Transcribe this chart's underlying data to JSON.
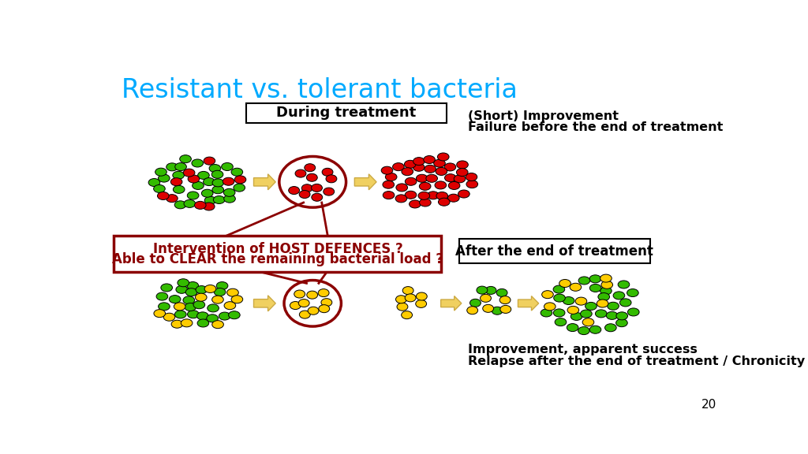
{
  "title": "Resistant vs. tolerant bacteria",
  "title_color": "#00AAFF",
  "title_fontsize": 24,
  "bg_color": "#FFFFFF",
  "during_treatment_label": "During treatment",
  "after_treatment_label": "After the end of treatment",
  "host_defence_line1": "Intervention of HOST DEFENCES ?",
  "host_defence_line2": "Able to CLEAR the remaining bacterial load ?",
  "short_improvement_line1": "(Short) Improvement",
  "short_improvement_line2": "Failure before the end of treatment",
  "improvement_line1": "Improvement, apparent success",
  "improvement_line2": "Relapse after the end of treatment / Chronicity",
  "page_number": "20",
  "red_color": "#DD0000",
  "green_color": "#33BB00",
  "yellow_color": "#FFCC00",
  "dark_red": "#8B0000",
  "arrow_fill": "#F0D060",
  "arrow_edge": "#CCAA44"
}
